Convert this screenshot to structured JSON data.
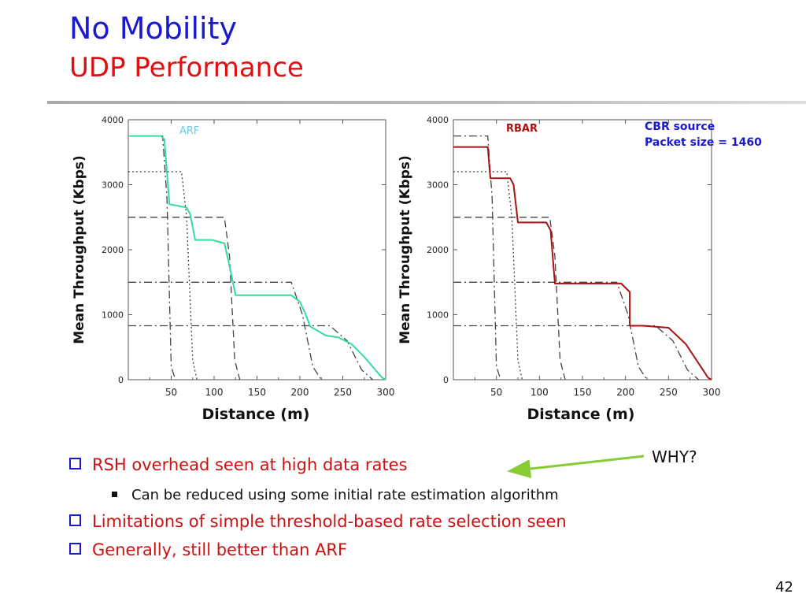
{
  "slide": {
    "title": "No Mobility",
    "subtitle": "UDP Performance",
    "page_number": "42",
    "why_label": "WHY?",
    "bullets": [
      {
        "text": "RSH overhead seen at high data rates",
        "level": 1
      },
      {
        "text": "Can be reduced using some initial rate estimation algorithm",
        "level": 2
      },
      {
        "text": "Limitations of simple threshold-based rate selection seen",
        "level": 1
      },
      {
        "text": "Generally, still better than ARF",
        "level": 1
      }
    ],
    "colors": {
      "title": "#1a1acc",
      "subtitle": "#dd1111",
      "arrow": "#88cc33",
      "arf": "#33dd99",
      "rbar": "#aa1111",
      "annotation": "#1a1acc"
    }
  },
  "chart_data": [
    {
      "type": "line",
      "series_label": "ARF",
      "xlabel": "Distance (m)",
      "ylabel": "Mean Throughput (Kbps)",
      "xlim": [
        0,
        300
      ],
      "ylim": [
        0,
        4000
      ],
      "xticks": [
        50,
        100,
        150,
        200,
        250,
        300
      ],
      "yticks": [
        0,
        1000,
        2000,
        3000,
        4000
      ],
      "series": [
        {
          "style": "dashdot",
          "x": [
            0,
            40,
            45,
            50,
            55
          ],
          "y": [
            3750,
            3750,
            2800,
            200,
            0
          ]
        },
        {
          "style": "dotted",
          "x": [
            0,
            62,
            68,
            75,
            80
          ],
          "y": [
            3200,
            3200,
            2500,
            300,
            0
          ]
        },
        {
          "style": "dashed",
          "x": [
            0,
            112,
            118,
            124,
            130
          ],
          "y": [
            2500,
            2500,
            1900,
            300,
            0
          ]
        },
        {
          "style": "dashdot",
          "x": [
            0,
            190,
            203,
            215,
            225
          ],
          "y": [
            1500,
            1500,
            1000,
            200,
            0
          ]
        },
        {
          "style": "dashdot",
          "x": [
            0,
            235,
            255,
            272,
            285
          ],
          "y": [
            830,
            830,
            600,
            150,
            0
          ]
        },
        {
          "style": "solid",
          "x": [
            0,
            38,
            42,
            48,
            68,
            72,
            78,
            98,
            112,
            118,
            125,
            190,
            200,
            207,
            212,
            230,
            245,
            260,
            275,
            290,
            296,
            300
          ],
          "y": [
            3750,
            3750,
            3700,
            2700,
            2650,
            2550,
            2150,
            2150,
            2100,
            1750,
            1300,
            1300,
            1200,
            1000,
            820,
            680,
            650,
            550,
            350,
            120,
            30,
            0
          ]
        }
      ]
    },
    {
      "type": "line",
      "series_label": "RBAR",
      "annotations": [
        "CBR source",
        "Packet size = 1460"
      ],
      "xlabel": "Distance (m)",
      "ylabel": "Mean Throughput (Kbps)",
      "xlim": [
        0,
        300
      ],
      "ylim": [
        0,
        4000
      ],
      "xticks": [
        50,
        100,
        150,
        200,
        250,
        300
      ],
      "yticks": [
        0,
        1000,
        2000,
        3000,
        4000
      ],
      "series": [
        {
          "style": "dashdot",
          "x": [
            0,
            40,
            45,
            50,
            55
          ],
          "y": [
            3750,
            3750,
            2800,
            200,
            0
          ]
        },
        {
          "style": "dotted",
          "x": [
            0,
            62,
            68,
            75,
            80
          ],
          "y": [
            3200,
            3200,
            2500,
            300,
            0
          ]
        },
        {
          "style": "dashed",
          "x": [
            0,
            112,
            118,
            124,
            130
          ],
          "y": [
            2500,
            2500,
            1900,
            300,
            0
          ]
        },
        {
          "style": "dashdot",
          "x": [
            0,
            190,
            203,
            215,
            225
          ],
          "y": [
            1500,
            1500,
            1000,
            200,
            0
          ]
        },
        {
          "style": "dashdot",
          "x": [
            0,
            235,
            255,
            272,
            285
          ],
          "y": [
            830,
            830,
            600,
            150,
            0
          ]
        },
        {
          "style": "solid",
          "x": [
            0,
            40,
            43,
            66,
            70,
            75,
            108,
            113,
            118,
            195,
            205,
            205,
            220,
            250,
            270,
            290,
            296,
            300
          ],
          "y": [
            3580,
            3580,
            3100,
            3100,
            3000,
            2420,
            2420,
            2300,
            1480,
            1480,
            1350,
            830,
            830,
            800,
            550,
            150,
            30,
            0
          ]
        }
      ]
    }
  ]
}
